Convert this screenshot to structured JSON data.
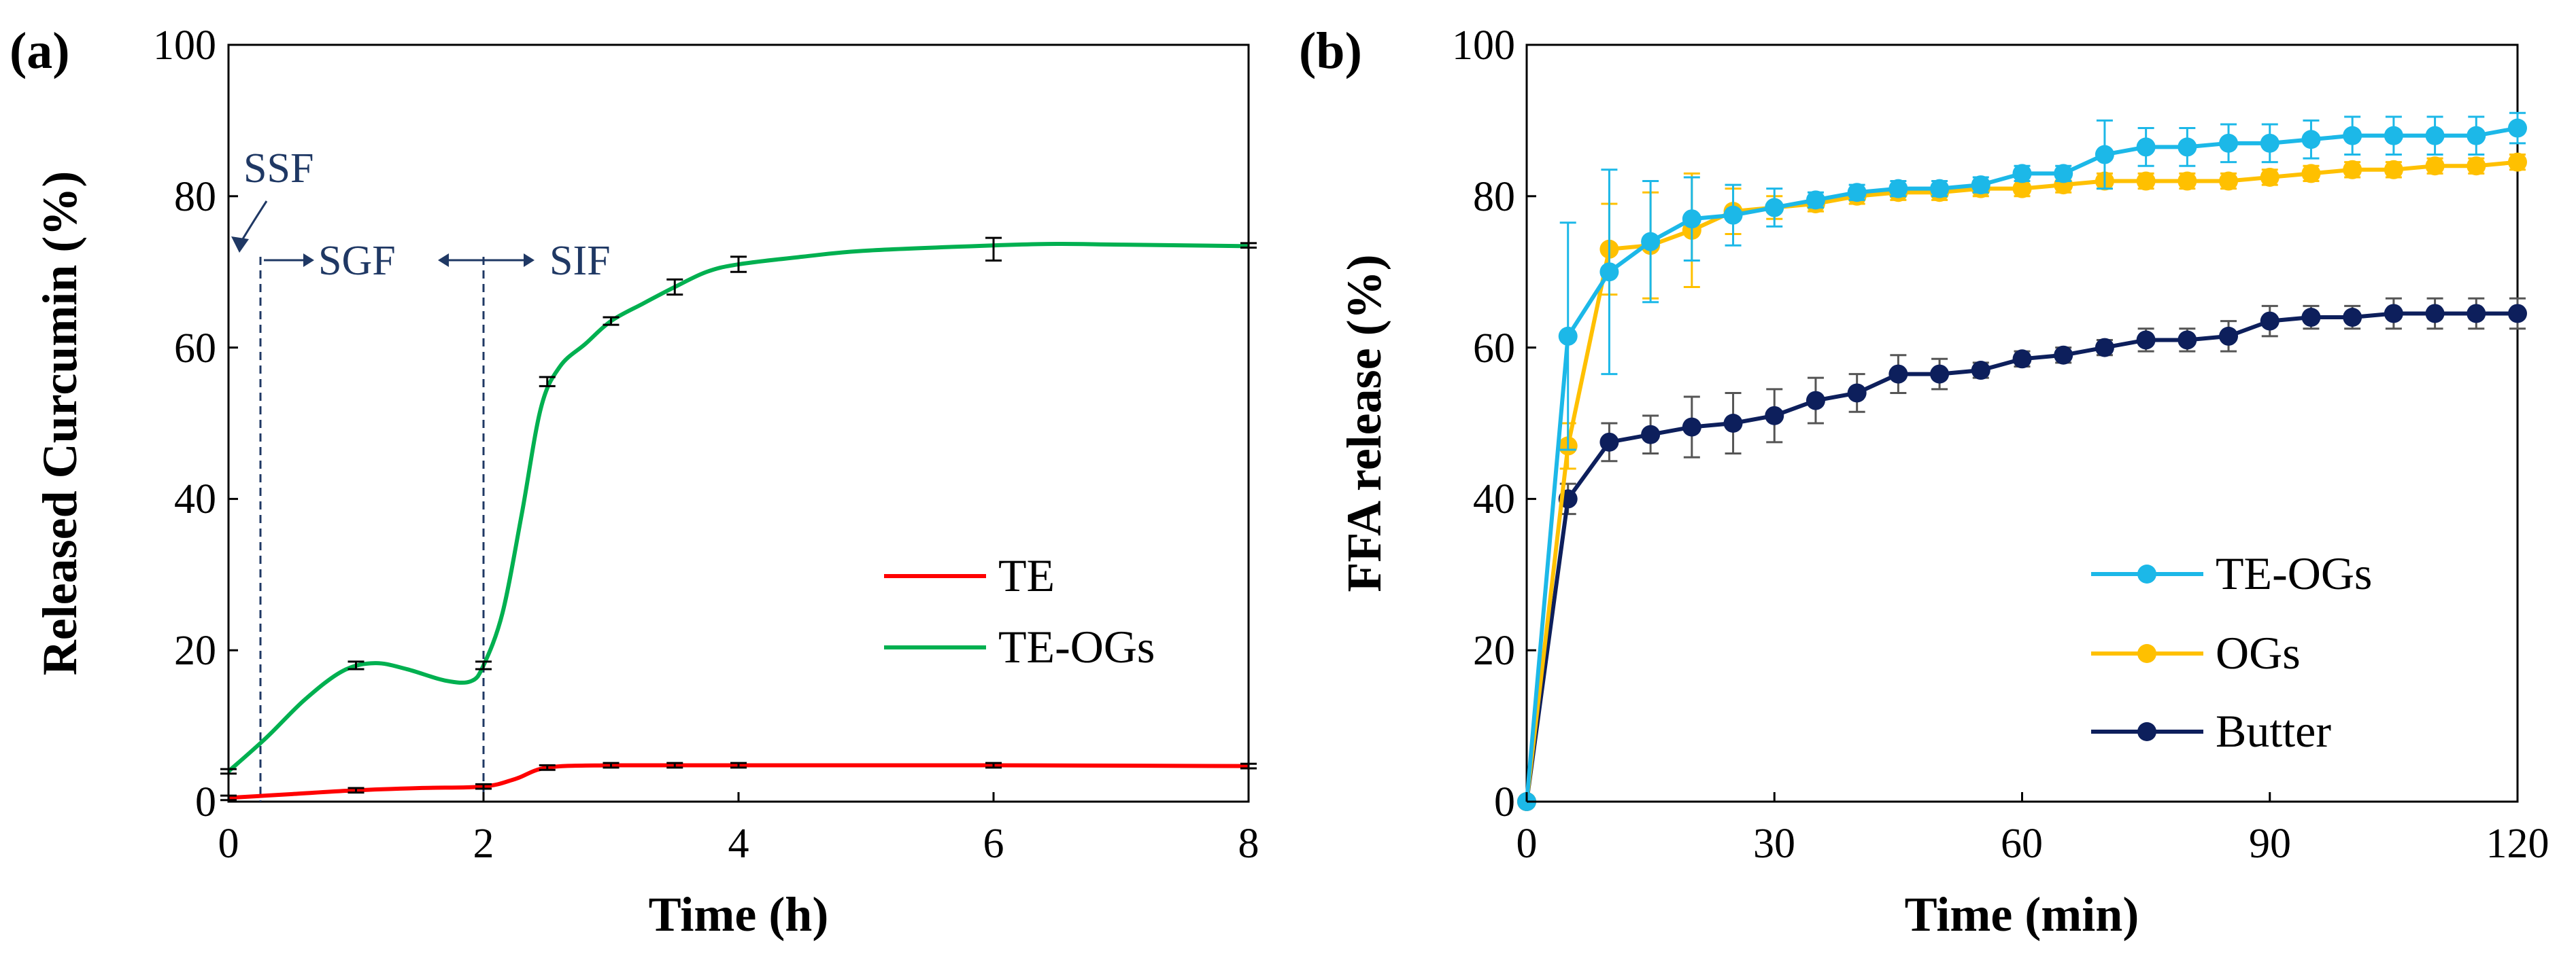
{
  "colors": {
    "te": "#ff0000",
    "te_ogs_a": "#00b050",
    "te_ogs_b": "#1cb8e8",
    "ogs": "#ffc000",
    "butter": "#0d1f5c",
    "phase": "#1f3864",
    "errorbar": "#555555"
  },
  "chart_data": [
    {
      "panel": "(a)",
      "type": "line",
      "xlabel": "Time (h)",
      "ylabel": "Released Curcumin (%)",
      "xlim": [
        0,
        8
      ],
      "ylim": [
        0,
        100
      ],
      "xticks": [
        "0",
        "2",
        "4",
        "6",
        "8"
      ],
      "yticks": [
        "0",
        "20",
        "40",
        "60",
        "80",
        "100"
      ],
      "grid": false,
      "legend_position": "bottom-right",
      "annotations": [
        "SSF",
        "SGF",
        "SIF"
      ],
      "phase_boundaries": [
        0.25,
        2
      ],
      "series": [
        {
          "name": "TE",
          "color_key": "te",
          "points": [
            [
              0,
              0.5
            ],
            [
              1,
              1.5
            ],
            [
              2,
              2.0
            ],
            [
              2.5,
              4.5
            ],
            [
              3,
              4.8
            ],
            [
              3.5,
              4.8
            ],
            [
              4,
              4.8
            ],
            [
              6,
              4.8
            ],
            [
              8,
              4.7
            ]
          ],
          "curve": [
            [
              0,
              0.5
            ],
            [
              0.5,
              1.0
            ],
            [
              1,
              1.5
            ],
            [
              1.5,
              1.8
            ],
            [
              2,
              2.0
            ],
            [
              2.25,
              3.0
            ],
            [
              2.5,
              4.5
            ],
            [
              3,
              4.8
            ],
            [
              4,
              4.8
            ],
            [
              6,
              4.8
            ],
            [
              8,
              4.7
            ]
          ]
        },
        {
          "name": "TE-OGs",
          "color_key": "te_ogs_a",
          "points": [
            [
              0,
              4.0
            ],
            [
              1,
              18.0
            ],
            [
              2,
              18.0
            ],
            [
              2.5,
              55.5
            ],
            [
              3,
              63.5
            ],
            [
              3.5,
              68.0
            ],
            [
              4,
              71.0
            ],
            [
              6,
              73.0
            ],
            [
              8,
              73.5
            ]
          ],
          "curve": [
            [
              0,
              4.0
            ],
            [
              0.3,
              8.5
            ],
            [
              0.6,
              13.5
            ],
            [
              0.9,
              17.3
            ],
            [
              1.15,
              18.3
            ],
            [
              1.4,
              17.5
            ],
            [
              1.7,
              16.0
            ],
            [
              1.9,
              15.9
            ],
            [
              2,
              18.0
            ],
            [
              2.15,
              25
            ],
            [
              2.3,
              38
            ],
            [
              2.45,
              52
            ],
            [
              2.6,
              57.5
            ],
            [
              2.8,
              60.5
            ],
            [
              3,
              63.5
            ],
            [
              3.25,
              65.8
            ],
            [
              3.5,
              68.0
            ],
            [
              3.75,
              70.0
            ],
            [
              4,
              71.0
            ],
            [
              4.5,
              72.0
            ],
            [
              5,
              72.8
            ],
            [
              6,
              73.5
            ],
            [
              6.5,
              73.7
            ],
            [
              7,
              73.6
            ],
            [
              8,
              73.4
            ]
          ],
          "errors": [
            0.3,
            0.5,
            0.5,
            0.6,
            0.5,
            1.0,
            1.0,
            1.5,
            0.3
          ]
        }
      ]
    },
    {
      "panel": "(b)",
      "type": "line",
      "xlabel": "Time (min)",
      "ylabel": "FFA release (%)",
      "xlim": [
        0,
        120
      ],
      "ylim": [
        0,
        100
      ],
      "xticks": [
        "0",
        "30",
        "60",
        "90",
        "120"
      ],
      "yticks": [
        "0",
        "20",
        "40",
        "60",
        "80",
        "100"
      ],
      "grid": false,
      "legend_position": "bottom-right",
      "x": [
        0,
        5,
        10,
        15,
        20,
        25,
        30,
        35,
        40,
        45,
        50,
        55,
        60,
        65,
        70,
        75,
        80,
        85,
        90,
        95,
        100,
        105,
        110,
        115,
        120
      ],
      "series": [
        {
          "name": "TE-OGs",
          "color_key": "te_ogs_b",
          "values": [
            0,
            61.5,
            70.0,
            74.0,
            77.0,
            77.5,
            78.5,
            79.5,
            80.5,
            81.0,
            81.0,
            81.5,
            83.0,
            83.0,
            85.5,
            86.5,
            86.5,
            87.0,
            87.0,
            87.5,
            88.0,
            88.0,
            88.0,
            88.0,
            89.0
          ],
          "errors": [
            0,
            15.0,
            13.5,
            8.0,
            5.5,
            4.0,
            2.5,
            1.0,
            1.0,
            1.0,
            1.0,
            1.0,
            1.0,
            1.0,
            4.5,
            2.5,
            2.5,
            2.5,
            2.5,
            2.5,
            2.5,
            2.5,
            2.5,
            2.5,
            2.0
          ]
        },
        {
          "name": "OGs",
          "color_key": "ogs",
          "values": [
            0,
            47.0,
            73.0,
            73.5,
            75.5,
            78.0,
            78.5,
            79.0,
            80.0,
            80.5,
            80.5,
            81.0,
            81.0,
            81.5,
            82.0,
            82.0,
            82.0,
            82.0,
            82.5,
            83.0,
            83.5,
            83.5,
            84.0,
            84.0,
            84.5
          ],
          "errors": [
            0,
            3.0,
            6.0,
            7.0,
            7.5,
            3.0,
            1.5,
            1.0,
            1.0,
            1.0,
            1.0,
            1.0,
            1.0,
            1.0,
            1.0,
            1.0,
            1.0,
            1.0,
            1.0,
            1.0,
            1.0,
            1.0,
            1.0,
            1.0,
            1.0
          ]
        },
        {
          "name": "Butter",
          "color_key": "butter",
          "values": [
            0,
            40.0,
            47.5,
            48.5,
            49.5,
            50.0,
            51.0,
            53.0,
            54.0,
            56.5,
            56.5,
            57.0,
            58.5,
            59.0,
            60.0,
            61.0,
            61.0,
            61.5,
            63.5,
            64.0,
            64.0,
            64.5,
            64.5,
            64.5,
            64.5
          ],
          "errors": [
            0,
            2.0,
            2.5,
            2.5,
            4.0,
            4.0,
            3.5,
            3.0,
            2.5,
            2.5,
            2.0,
            1.0,
            1.0,
            1.0,
            1.0,
            1.5,
            1.5,
            2.0,
            2.0,
            1.5,
            1.5,
            2.0,
            2.0,
            2.0,
            2.0
          ]
        }
      ]
    }
  ]
}
